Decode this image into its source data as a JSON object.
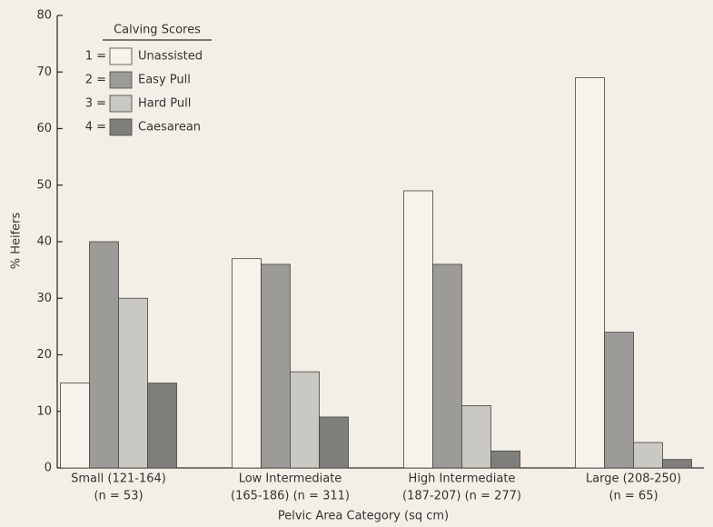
{
  "chart_data": {
    "type": "bar",
    "xlabel": "Pelvic Area Category (sq cm)",
    "ylabel": "% Heifers",
    "categories": [
      [
        "Small (121-164)",
        "(n = 53)"
      ],
      [
        "Low Intermediate",
        "(165-186) (n = 311)"
      ],
      [
        "High Intermediate",
        "(187-207) (n = 277)"
      ],
      [
        "Large (208-250)",
        "(n = 65)"
      ]
    ],
    "legend_title": "Calving Scores",
    "legend_keys": [
      "1 =",
      "2 =",
      "3 =",
      "4 ="
    ],
    "series": [
      {
        "name": "Unassisted",
        "color": "#f6f3ea",
        "values": [
          15,
          37,
          49,
          69
        ]
      },
      {
        "name": "Easy Pull",
        "color": "#9c9b97",
        "values": [
          40,
          36,
          36,
          24
        ]
      },
      {
        "name": "Hard Pull",
        "color": "#cac8c2",
        "values": [
          30,
          17,
          11,
          4.5
        ]
      },
      {
        "name": "Caesarean",
        "color": "#7e7e7b",
        "values": [
          15,
          9,
          3,
          1.5
        ]
      }
    ],
    "ylim": [
      0,
      80
    ],
    "yticks": [
      0,
      10,
      20,
      30,
      40,
      50,
      60,
      70,
      80
    ],
    "legend": "upper left"
  }
}
